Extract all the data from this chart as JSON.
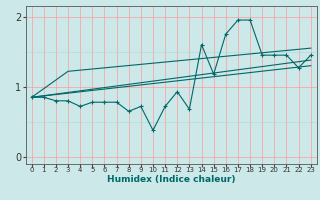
{
  "xlabel": "Humidex (Indice chaleur)",
  "ylabel": "",
  "bg_color": "#cce8e8",
  "line_color": "#006868",
  "xlim": [
    -0.5,
    23.5
  ],
  "ylim": [
    -0.1,
    2.15
  ],
  "xticks": [
    0,
    1,
    2,
    3,
    4,
    5,
    6,
    7,
    8,
    9,
    10,
    11,
    12,
    13,
    14,
    15,
    16,
    17,
    18,
    19,
    20,
    21,
    22,
    23
  ],
  "yticks": [
    0,
    1,
    2
  ],
  "series": {
    "zigzag": [
      [
        0,
        0.85
      ],
      [
        1,
        0.85
      ],
      [
        2,
        0.8
      ],
      [
        3,
        0.8
      ],
      [
        4,
        0.72
      ],
      [
        5,
        0.78
      ],
      [
        6,
        0.78
      ],
      [
        7,
        0.78
      ],
      [
        8,
        0.65
      ],
      [
        9,
        0.72
      ],
      [
        10,
        0.38
      ],
      [
        11,
        0.72
      ],
      [
        12,
        0.93
      ],
      [
        13,
        0.68
      ],
      [
        14,
        1.6
      ],
      [
        15,
        1.18
      ],
      [
        16,
        1.75
      ],
      [
        17,
        1.95
      ],
      [
        18,
        1.95
      ],
      [
        19,
        1.45
      ],
      [
        20,
        1.45
      ],
      [
        21,
        1.45
      ],
      [
        22,
        1.27
      ],
      [
        23,
        1.45
      ]
    ],
    "upper_line": [
      [
        0,
        0.85
      ],
      [
        3,
        1.22
      ],
      [
        23,
        1.55
      ]
    ],
    "lower_line1": [
      [
        0,
        0.85
      ],
      [
        23,
        1.38
      ]
    ],
    "lower_line2": [
      [
        0,
        0.85
      ],
      [
        23,
        1.3
      ]
    ]
  }
}
